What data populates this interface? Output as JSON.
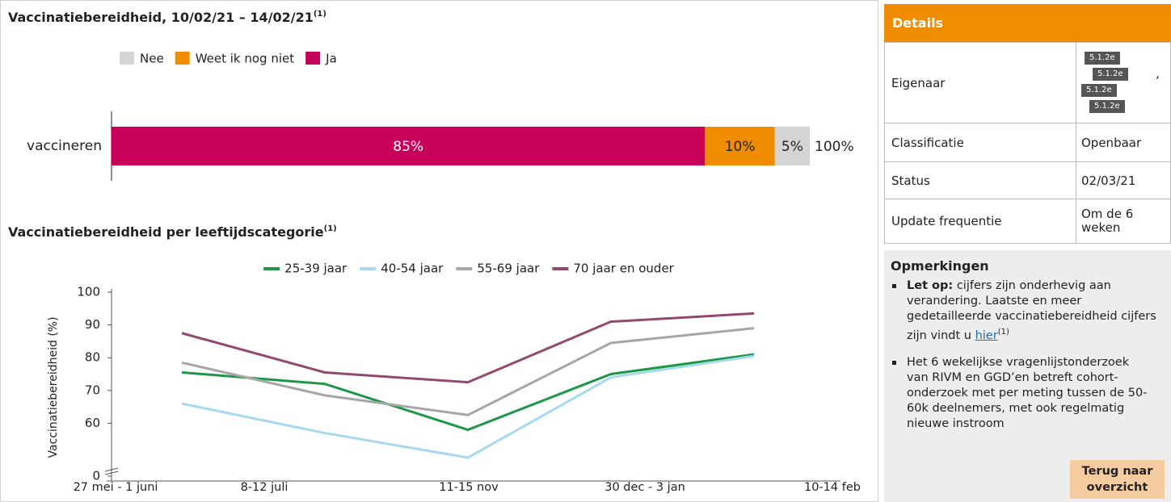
{
  "chart_data": [
    {
      "type": "stacked-bar-h",
      "title": "Vaccinatiebereidheid, 10/02/21 – 14/02/21",
      "title_note": "(1)",
      "categories": [
        "vaccineren"
      ],
      "series": [
        {
          "name": "Nee",
          "color": "#d4d4d4",
          "values": [
            5
          ],
          "value_labels": [
            "5%"
          ]
        },
        {
          "name": "Weet ik nog niet",
          "color": "#f08c00",
          "values": [
            10
          ],
          "value_labels": [
            "10%"
          ]
        },
        {
          "name": "Ja",
          "color": "#c8005a",
          "values": [
            85
          ],
          "value_labels": [
            "85%"
          ]
        }
      ],
      "total": 100,
      "total_label": "100%"
    },
    {
      "type": "line",
      "title": "Vaccinatiebereidheid per leeftijdscategorie",
      "title_note": "(1)",
      "y_label": "Vaccinatiebereidheid (%)",
      "categories": [
        "27 mei - 1 juni",
        "8-12 juli",
        "11-15 nov",
        "30 dec - 3 jan",
        "10-14 feb"
      ],
      "series": [
        {
          "name": "25-39 jaar",
          "color": "#1e9648",
          "values": [
            75.5,
            72,
            58,
            75,
            81
          ]
        },
        {
          "name": "40-54 jaar",
          "color": "#a6d8f0",
          "values": [
            66,
            57,
            49.5,
            74,
            80.5
          ]
        },
        {
          "name": "55-69 jaar",
          "color": "#a6a6a6",
          "values": [
            78.5,
            68.5,
            62.5,
            84.5,
            89
          ]
        },
        {
          "name": "70 jaar en ouder",
          "color": "#8f4a6e",
          "values": [
            87.5,
            75.5,
            72.5,
            91,
            93.5
          ]
        }
      ],
      "ylim": [
        0,
        100
      ],
      "yticks": [
        0,
        60,
        70,
        80,
        90,
        100
      ],
      "axis_break": true
    }
  ],
  "details": {
    "title": "Details",
    "rows": [
      {
        "label": "Eigenaar",
        "redactions": [
          "5.1.2e",
          "5.1.2e",
          "5.1.2e",
          "5.1.2e"
        ],
        "suffix": ","
      },
      {
        "label": "Classificatie",
        "value": "Openbaar"
      },
      {
        "label": "Status",
        "value": "02/03/21"
      },
      {
        "label": "Update frequentie",
        "value": "Om de 6 weken"
      }
    ]
  },
  "remarks": {
    "title": "Opmerkingen",
    "items": [
      {
        "bold": "Let op:",
        "text": "cijfers zijn onderhevig aan verandering. Laatste en meer gedetailleerde vaccinatiebereidheid cijfers zijn vindt u",
        "link": "hier",
        "note": "(1)"
      },
      {
        "text": "Het 6 wekelijkse vragenlijstonderzoek van RIVM en GGD’en betreft cohort-onderzoek met per meting tussen de 50-60k deelnemers, met ook regelmatig nieuwe instroom"
      }
    ],
    "button": "Terug naar overzicht"
  }
}
